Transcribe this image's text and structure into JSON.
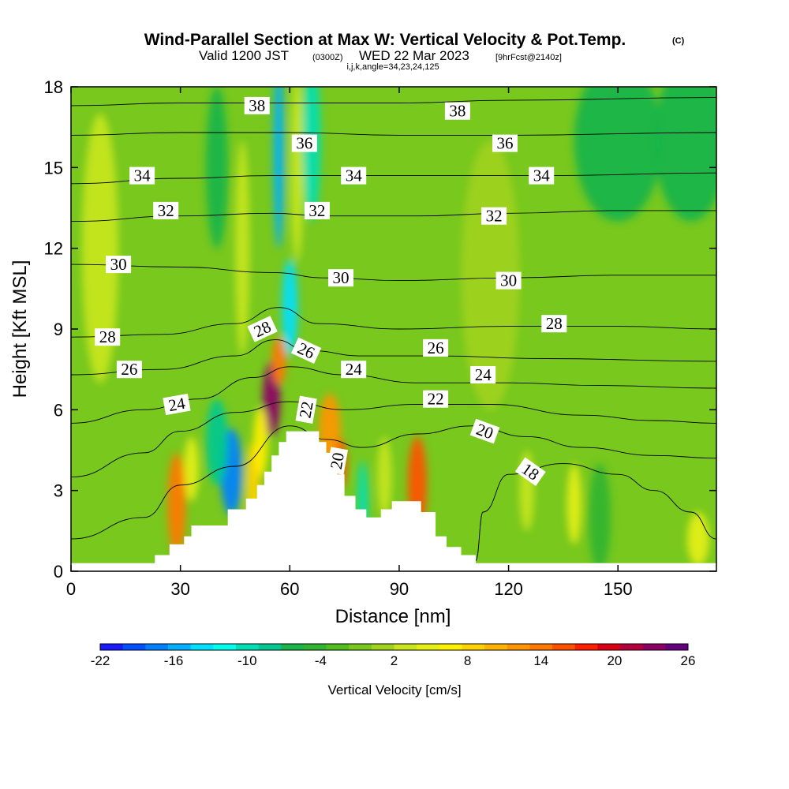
{
  "titles": {
    "main": "Wind-Parallel Section at Max W: Vertical Velocity & Pot.Temp.",
    "copyright": "(C)",
    "valid_prefix": "Valid 1200 JST",
    "valid_utc": "(0300Z)",
    "valid_date": "WED 22 Mar 2023",
    "forecast": "[9hrFcst@2140z]",
    "params": "i,j,k,angle=34,23,24,125"
  },
  "chart_data": {
    "type": "heatmap",
    "title": "Wind-Parallel Section at Max W: Vertical Velocity & Pot.Temp.",
    "xlabel": "Distance [nm]",
    "ylabel": "Height [Kft MSL]",
    "xlim": [
      0,
      177
    ],
    "ylim": [
      0,
      18
    ],
    "x_ticks": [
      "0",
      "30",
      "60",
      "90",
      "120",
      "150"
    ],
    "y_ticks": [
      "0",
      "3",
      "6",
      "9",
      "12",
      "15",
      "18"
    ],
    "colorbar": {
      "label": "Vertical Velocity [cm/s]",
      "min": -22,
      "max": 26,
      "step": 2,
      "tick_labels": [
        "-22",
        "-16",
        "-10",
        "-4",
        "2",
        "8",
        "14",
        "20",
        "26"
      ],
      "colors": [
        "#1a1aff",
        "#0050ff",
        "#0080ff",
        "#00b0ff",
        "#00e0ff",
        "#00ffee",
        "#00e0b4",
        "#00c890",
        "#1ab44a",
        "#32b432",
        "#50be1e",
        "#78c81e",
        "#a0d21e",
        "#c8e61e",
        "#e6f014",
        "#fff000",
        "#ffd200",
        "#ffb400",
        "#ff9600",
        "#ff7800",
        "#ff5000",
        "#ff1e00",
        "#dc0014",
        "#b4003c",
        "#8c0064",
        "#64007c"
      ]
    },
    "velocity_features": [
      {
        "x": 29,
        "z": 2.5,
        "w": 16,
        "dx": 2.5,
        "dz": 1.9
      },
      {
        "x": 33,
        "z": 3.8,
        "w": 6,
        "dx": 2,
        "dz": 1.2
      },
      {
        "x": 44,
        "z": 3.7,
        "w": -17,
        "dx": 3,
        "dz": 1.6
      },
      {
        "x": 40,
        "z": 4.8,
        "w": -8,
        "dx": 3,
        "dz": 1.6
      },
      {
        "x": 50,
        "z": 3.2,
        "w": 10,
        "dx": 2,
        "dz": 1.6
      },
      {
        "x": 55,
        "z": 6.4,
        "w": 27,
        "dx": 2.4,
        "dz": 1.4
      },
      {
        "x": 57,
        "z": 7.8,
        "w": 16,
        "dx": 2,
        "dz": 0.9
      },
      {
        "x": 52,
        "z": 4.8,
        "w": 8,
        "dx": 2,
        "dz": 1.3
      },
      {
        "x": 60,
        "z": 9.8,
        "w": -14,
        "dx": 2.2,
        "dz": 1.8
      },
      {
        "x": 57,
        "z": 15.5,
        "w": -16,
        "dx": 1.5,
        "dz": 3.5
      },
      {
        "x": 62,
        "z": 15,
        "w": 5,
        "dx": 1.8,
        "dz": 3.5
      },
      {
        "x": 66,
        "z": 16,
        "w": -10,
        "dx": 2.5,
        "dz": 3
      },
      {
        "x": 71,
        "z": 5.2,
        "w": 14,
        "dx": 3,
        "dz": 1.4
      },
      {
        "x": 74,
        "z": 4.0,
        "w": 18,
        "dx": 1.6,
        "dz": 0.9
      },
      {
        "x": 80,
        "z": 2.5,
        "w": -10,
        "dx": 1.5,
        "dz": 1.6
      },
      {
        "x": 86,
        "z": 3.5,
        "w": 4,
        "dx": 2,
        "dz": 1.5
      },
      {
        "x": 95,
        "z": 3.2,
        "w": 18,
        "dx": 2.6,
        "dz": 1.8
      },
      {
        "x": 40,
        "z": 15,
        "w": -6,
        "dx": 3,
        "dz": 3
      },
      {
        "x": 47,
        "z": 12,
        "w": 5,
        "dx": 2,
        "dz": 4
      },
      {
        "x": 8,
        "z": 12,
        "w": 4,
        "dx": 5,
        "dz": 5
      },
      {
        "x": 115,
        "z": 11,
        "w": 3,
        "dx": 8,
        "dz": 5
      },
      {
        "x": 150,
        "z": 16,
        "w": -5,
        "dx": 12,
        "dz": 3
      },
      {
        "x": 170,
        "z": 16,
        "w": -6,
        "dx": 10,
        "dz": 3
      },
      {
        "x": 125,
        "z": 3,
        "w": 5,
        "dx": 2,
        "dz": 1.5
      },
      {
        "x": 138,
        "z": 2.5,
        "w": 6,
        "dx": 2,
        "dz": 1.5
      },
      {
        "x": 145,
        "z": 2,
        "w": -4,
        "dx": 3,
        "dz": 2
      },
      {
        "x": 172,
        "z": 1.2,
        "w": 6,
        "dx": 3,
        "dz": 1
      }
    ],
    "terrain_steps": [
      [
        0,
        0.3
      ],
      [
        20,
        0.3
      ],
      [
        23,
        0.6
      ],
      [
        26,
        0.6
      ],
      [
        27,
        1.0
      ],
      [
        30,
        1.0
      ],
      [
        31,
        1.3
      ],
      [
        32,
        1.3
      ],
      [
        33,
        1.7
      ],
      [
        42,
        1.7
      ],
      [
        43,
        2.3
      ],
      [
        47,
        2.3
      ],
      [
        48,
        2.7
      ],
      [
        50,
        2.7
      ],
      [
        51,
        3.2
      ],
      [
        52,
        3.2
      ],
      [
        53,
        3.7
      ],
      [
        54,
        3.7
      ],
      [
        55,
        4.3
      ],
      [
        56,
        4.3
      ],
      [
        57,
        4.8
      ],
      [
        58,
        4.8
      ],
      [
        59,
        5.2
      ],
      [
        67,
        5.2
      ],
      [
        68,
        4.8
      ],
      [
        69,
        4.8
      ],
      [
        70,
        4.4
      ],
      [
        72,
        4.4
      ],
      [
        73,
        3.6
      ],
      [
        74,
        3.6
      ],
      [
        75,
        2.8
      ],
      [
        77,
        2.8
      ],
      [
        78,
        2.3
      ],
      [
        80,
        2.3
      ],
      [
        81,
        2.0
      ],
      [
        84,
        2.0
      ],
      [
        85,
        2.3
      ],
      [
        87,
        2.3
      ],
      [
        88,
        2.6
      ],
      [
        95,
        2.6
      ],
      [
        96,
        2.2
      ],
      [
        99,
        2.2
      ],
      [
        100,
        1.3
      ],
      [
        102,
        1.3
      ],
      [
        103,
        0.9
      ],
      [
        106,
        0.9
      ],
      [
        107,
        0.6
      ],
      [
        110,
        0.6
      ],
      [
        111,
        0.3
      ],
      [
        177,
        0.3
      ]
    ],
    "isentropes": [
      {
        "value": 18,
        "points": [
          [
            111,
            0.4
          ],
          [
            113,
            2.2
          ],
          [
            120,
            3.6
          ],
          [
            135,
            4.0
          ],
          [
            150,
            3.6
          ],
          [
            160,
            3.0
          ],
          [
            170,
            2.2
          ],
          [
            177,
            1.2
          ]
        ]
      },
      {
        "value": 20,
        "points": [
          [
            0,
            1.2
          ],
          [
            20,
            2.0
          ],
          [
            30,
            3.2
          ],
          [
            45,
            3.9
          ],
          [
            60,
            5.4
          ],
          [
            70,
            4.9
          ],
          [
            80,
            4.6
          ],
          [
            95,
            5.1
          ],
          [
            110,
            5.4
          ],
          [
            125,
            5.0
          ],
          [
            140,
            4.6
          ],
          [
            160,
            4.3
          ],
          [
            177,
            4.2
          ]
        ]
      },
      {
        "value": 22,
        "points": [
          [
            0,
            3.5
          ],
          [
            20,
            4.4
          ],
          [
            30,
            5.2
          ],
          [
            45,
            5.9
          ],
          [
            60,
            6.3
          ],
          [
            75,
            6.0
          ],
          [
            95,
            6.2
          ],
          [
            115,
            6.2
          ],
          [
            140,
            5.8
          ],
          [
            160,
            5.6
          ],
          [
            177,
            5.5
          ]
        ]
      },
      {
        "value": 24,
        "points": [
          [
            0,
            5.5
          ],
          [
            20,
            6.0
          ],
          [
            35,
            6.4
          ],
          [
            50,
            7.2
          ],
          [
            60,
            7.6
          ],
          [
            75,
            7.3
          ],
          [
            95,
            7.0
          ],
          [
            120,
            7.0
          ],
          [
            145,
            6.9
          ],
          [
            177,
            6.8
          ]
        ]
      },
      {
        "value": 26,
        "points": [
          [
            0,
            7.3
          ],
          [
            25,
            7.5
          ],
          [
            45,
            8.0
          ],
          [
            56,
            8.6
          ],
          [
            65,
            8.2
          ],
          [
            80,
            8.0
          ],
          [
            100,
            8.0
          ],
          [
            130,
            7.9
          ],
          [
            177,
            7.8
          ]
        ]
      },
      {
        "value": 28,
        "points": [
          [
            0,
            8.7
          ],
          [
            25,
            8.8
          ],
          [
            45,
            9.2
          ],
          [
            57,
            9.8
          ],
          [
            68,
            9.2
          ],
          [
            90,
            9.0
          ],
          [
            120,
            9.1
          ],
          [
            150,
            9.1
          ],
          [
            177,
            9.0
          ]
        ]
      },
      {
        "value": 30,
        "points": [
          [
            0,
            11.4
          ],
          [
            30,
            11.3
          ],
          [
            55,
            11.1
          ],
          [
            70,
            10.9
          ],
          [
            90,
            10.8
          ],
          [
            120,
            10.9
          ],
          [
            150,
            11.0
          ],
          [
            177,
            11.0
          ]
        ]
      },
      {
        "value": 32,
        "points": [
          [
            0,
            13.0
          ],
          [
            30,
            13.2
          ],
          [
            55,
            13.3
          ],
          [
            70,
            13.2
          ],
          [
            95,
            13.2
          ],
          [
            120,
            13.3
          ],
          [
            150,
            13.4
          ],
          [
            177,
            13.4
          ]
        ]
      },
      {
        "value": 34,
        "points": [
          [
            0,
            14.4
          ],
          [
            30,
            14.6
          ],
          [
            55,
            14.7
          ],
          [
            75,
            14.7
          ],
          [
            100,
            14.7
          ],
          [
            130,
            14.7
          ],
          [
            177,
            14.8
          ]
        ]
      },
      {
        "value": 36,
        "points": [
          [
            0,
            16.2
          ],
          [
            30,
            16.3
          ],
          [
            60,
            16.3
          ],
          [
            90,
            16.2
          ],
          [
            120,
            16.2
          ],
          [
            177,
            16.3
          ]
        ]
      },
      {
        "value": 38,
        "points": [
          [
            0,
            17.3
          ],
          [
            30,
            17.4
          ],
          [
            60,
            17.4
          ],
          [
            90,
            17.4
          ],
          [
            120,
            17.5
          ],
          [
            177,
            17.6
          ]
        ]
      }
    ],
    "contour_labels": [
      {
        "text": "38",
        "x": 51,
        "z": 17.3,
        "rot": 0
      },
      {
        "text": "38",
        "x": 106,
        "z": 17.1,
        "rot": 0
      },
      {
        "text": "36",
        "x": 64,
        "z": 15.9,
        "rot": 0
      },
      {
        "text": "36",
        "x": 119,
        "z": 15.9,
        "rot": 0
      },
      {
        "text": "34",
        "x": 19.5,
        "z": 14.7,
        "rot": 0
      },
      {
        "text": "34",
        "x": 77.5,
        "z": 14.7,
        "rot": 0
      },
      {
        "text": "34",
        "x": 129,
        "z": 14.7,
        "rot": 0
      },
      {
        "text": "32",
        "x": 26,
        "z": 13.4,
        "rot": 0
      },
      {
        "text": "32",
        "x": 67.5,
        "z": 13.4,
        "rot": 0
      },
      {
        "text": "32",
        "x": 116,
        "z": 13.2,
        "rot": 0
      },
      {
        "text": "30",
        "x": 13,
        "z": 11.4,
        "rot": 0
      },
      {
        "text": "30",
        "x": 74,
        "z": 10.9,
        "rot": 0
      },
      {
        "text": "30",
        "x": 120,
        "z": 10.8,
        "rot": 0
      },
      {
        "text": "28",
        "x": 10,
        "z": 8.7,
        "rot": 0
      },
      {
        "text": "28",
        "x": 52.5,
        "z": 9.0,
        "rot": -25
      },
      {
        "text": "28",
        "x": 132.5,
        "z": 9.2,
        "rot": 0
      },
      {
        "text": "26",
        "x": 16,
        "z": 7.5,
        "rot": 0
      },
      {
        "text": "26",
        "x": 64.5,
        "z": 8.2,
        "rot": 25
      },
      {
        "text": "26",
        "x": 100,
        "z": 8.3,
        "rot": 0
      },
      {
        "text": "24",
        "x": 29,
        "z": 6.2,
        "rot": -10
      },
      {
        "text": "24",
        "x": 77.5,
        "z": 7.5,
        "rot": 0
      },
      {
        "text": "24",
        "x": 113,
        "z": 7.3,
        "rot": 0
      },
      {
        "text": "22",
        "x": 64.5,
        "z": 6.0,
        "rot": -80
      },
      {
        "text": "22",
        "x": 100,
        "z": 6.4,
        "rot": 0
      },
      {
        "text": "20",
        "x": 73,
        "z": 4.1,
        "rot": -80
      },
      {
        "text": "20",
        "x": 113.5,
        "z": 5.2,
        "rot": 20
      },
      {
        "text": "18",
        "x": 126,
        "z": 3.7,
        "rot": 35
      }
    ]
  }
}
